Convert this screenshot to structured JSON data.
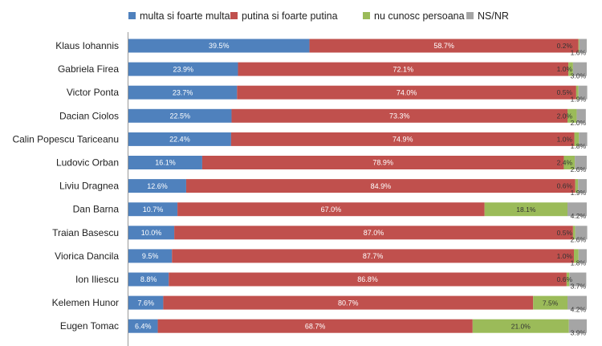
{
  "chart_data": {
    "type": "bar",
    "orientation": "horizontal",
    "stacked": true,
    "normalized": true,
    "legend_position": "top",
    "grid": false,
    "xlim": [
      0,
      100
    ],
    "categories": [
      "Klaus Iohannis",
      "Gabriela Firea",
      "Victor Ponta",
      "Dacian Ciolos",
      "Calin Popescu Tariceanu",
      "Ludovic Orban",
      "Liviu Dragnea",
      "Dan Barna",
      "Traian Basescu",
      "Viorica Dancila",
      "Ion Iliescu",
      "Kelemen Hunor",
      "Eugen Tomac"
    ],
    "series": [
      {
        "name": "multa si foarte multa",
        "color": "#4F81BD",
        "values": [
          39.5,
          23.9,
          23.7,
          22.5,
          22.4,
          16.1,
          12.6,
          10.7,
          10.0,
          9.5,
          8.8,
          7.6,
          6.4
        ]
      },
      {
        "name": "putina si foarte putina",
        "color": "#C0504D",
        "values": [
          58.7,
          72.1,
          74.0,
          73.3,
          74.9,
          78.9,
          84.9,
          67.0,
          87.0,
          87.7,
          86.8,
          80.7,
          68.7
        ]
      },
      {
        "name": "nu cunosc persoana",
        "color": "#9BBB59",
        "values": [
          0.2,
          1.0,
          0.5,
          2.0,
          1.0,
          2.4,
          0.6,
          18.1,
          0.5,
          1.0,
          0.6,
          7.5,
          21.0
        ]
      },
      {
        "name": "NS/NR",
        "color": "#A5A5A5",
        "values": [
          1.6,
          3.0,
          1.9,
          2.0,
          1.8,
          2.6,
          1.9,
          4.2,
          2.6,
          1.8,
          3.7,
          4.2,
          3.9
        ]
      }
    ],
    "value_labels": [
      [
        "39.5%",
        "23.9%",
        "23.7%",
        "22.5%",
        "22.4%",
        "16.1%",
        "12.6%",
        "10.7%",
        "10.0%",
        "9.5%",
        "8.8%",
        "7.6%",
        "6.4%"
      ],
      [
        "58.7%",
        "72.1%",
        "74.0%",
        "73.3%",
        "74.9%",
        "78.9%",
        "84.9%",
        "67.0%",
        "87.0%",
        "87.7%",
        "86.8%",
        "80.7%",
        "68.7%"
      ],
      [
        "0.2%",
        "1.0%",
        "0.5%",
        "2.0%",
        "1.0%",
        "2.4%",
        "0.6%",
        "18.1%",
        "0.5%",
        "1.0%",
        "0.6%",
        "7.5%",
        "21.0%"
      ],
      [
        "1.6%",
        "3.0%",
        "1.9%",
        "2.0%",
        "1.8%",
        "2.6%",
        "1.9%",
        "4.2%",
        "2.6%",
        "1.8%",
        "3.7%",
        "4.2%",
        "3.9%"
      ]
    ]
  }
}
